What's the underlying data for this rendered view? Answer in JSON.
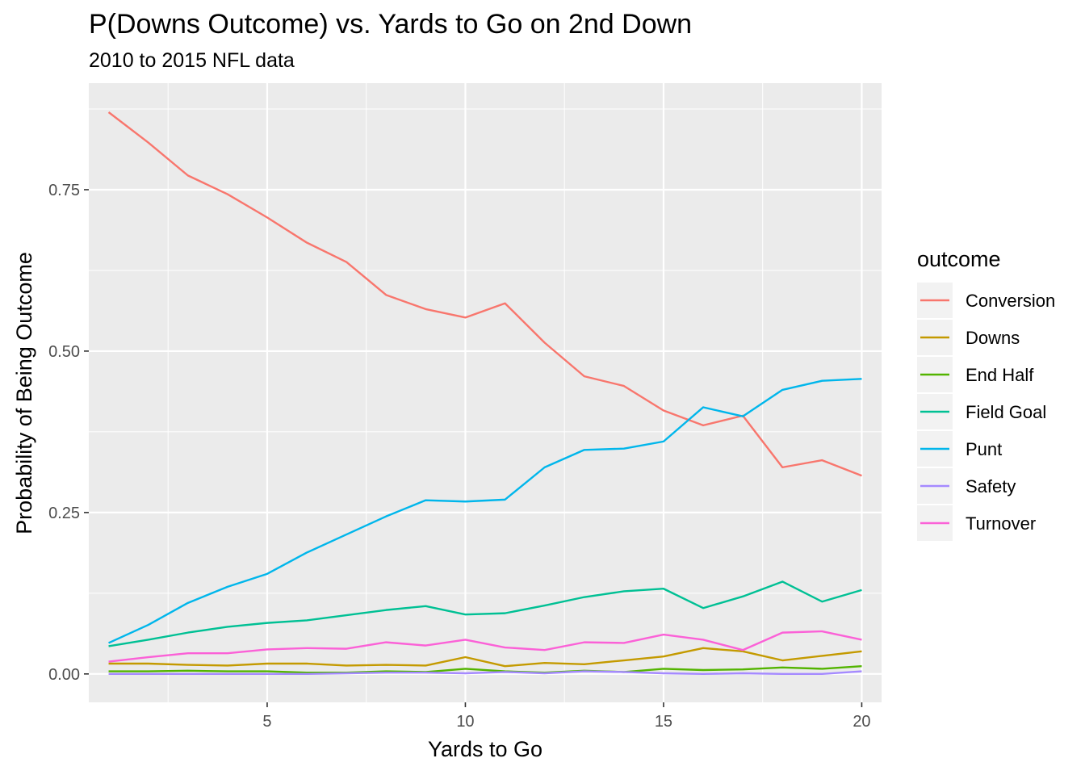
{
  "chart_data": {
    "type": "line",
    "title": "P(Downs Outcome) vs. Yards to Go on 2nd Down",
    "subtitle": "2010 to 2015 NFL data",
    "xlabel": "Yards to Go",
    "ylabel": "Probability of Being Outcome",
    "xlim": [
      0.5,
      20.5
    ],
    "ylim": [
      -0.044,
      0.915
    ],
    "x_ticks": [
      {
        "value": 5,
        "label": "5"
      },
      {
        "value": 10,
        "label": "10"
      },
      {
        "value": 15,
        "label": "15"
      },
      {
        "value": 20,
        "label": "20"
      }
    ],
    "y_ticks": [
      {
        "value": 0.0,
        "label": "0.00"
      },
      {
        "value": 0.25,
        "label": "0.25"
      },
      {
        "value": 0.5,
        "label": "0.50"
      },
      {
        "value": 0.75,
        "label": "0.75"
      }
    ],
    "grid": true,
    "legend_title": "outcome",
    "legend_position": "right",
    "x": [
      1,
      2,
      3,
      4,
      5,
      6,
      7,
      8,
      9,
      10,
      11,
      12,
      13,
      14,
      15,
      16,
      17,
      18,
      19,
      20
    ],
    "series": [
      {
        "name": "Conversion",
        "color": "#F8766D",
        "values": [
          0.87,
          0.823,
          0.772,
          0.743,
          0.707,
          0.668,
          0.638,
          0.587,
          0.565,
          0.552,
          0.574,
          0.513,
          0.461,
          0.446,
          0.408,
          0.385,
          0.4,
          0.32,
          0.331,
          0.307
        ]
      },
      {
        "name": "Downs",
        "color": "#C49A00",
        "values": [
          0.016,
          0.016,
          0.014,
          0.013,
          0.016,
          0.016,
          0.013,
          0.014,
          0.013,
          0.026,
          0.012,
          0.017,
          0.015,
          0.021,
          0.027,
          0.04,
          0.035,
          0.021,
          0.028,
          0.035
        ]
      },
      {
        "name": "End Half",
        "color": "#53B400",
        "values": [
          0.004,
          0.004,
          0.005,
          0.004,
          0.004,
          0.002,
          0.002,
          0.004,
          0.003,
          0.008,
          0.004,
          0.002,
          0.005,
          0.003,
          0.008,
          0.006,
          0.007,
          0.01,
          0.008,
          0.012
        ]
      },
      {
        "name": "Field Goal",
        "color": "#00C094",
        "values": [
          0.043,
          0.053,
          0.064,
          0.073,
          0.079,
          0.083,
          0.091,
          0.099,
          0.105,
          0.092,
          0.094,
          0.106,
          0.119,
          0.128,
          0.132,
          0.102,
          0.12,
          0.143,
          0.112,
          0.13
        ]
      },
      {
        "name": "Punt",
        "color": "#00B6EB",
        "values": [
          0.048,
          0.076,
          0.11,
          0.135,
          0.155,
          0.188,
          0.216,
          0.244,
          0.269,
          0.267,
          0.27,
          0.32,
          0.347,
          0.349,
          0.36,
          0.413,
          0.399,
          0.44,
          0.454,
          0.457
        ]
      },
      {
        "name": "Safety",
        "color": "#A58AFF",
        "values": [
          0.0,
          0.0,
          0.0,
          0.0,
          0.0,
          0.0,
          0.001,
          0.002,
          0.002,
          0.001,
          0.003,
          0.001,
          0.004,
          0.003,
          0.001,
          0.0,
          0.001,
          0.0,
          0.0,
          0.004
        ]
      },
      {
        "name": "Turnover",
        "color": "#FB61D7",
        "values": [
          0.019,
          0.026,
          0.032,
          0.032,
          0.038,
          0.04,
          0.039,
          0.049,
          0.044,
          0.053,
          0.041,
          0.037,
          0.049,
          0.048,
          0.061,
          0.053,
          0.037,
          0.064,
          0.066,
          0.053
        ]
      }
    ]
  }
}
